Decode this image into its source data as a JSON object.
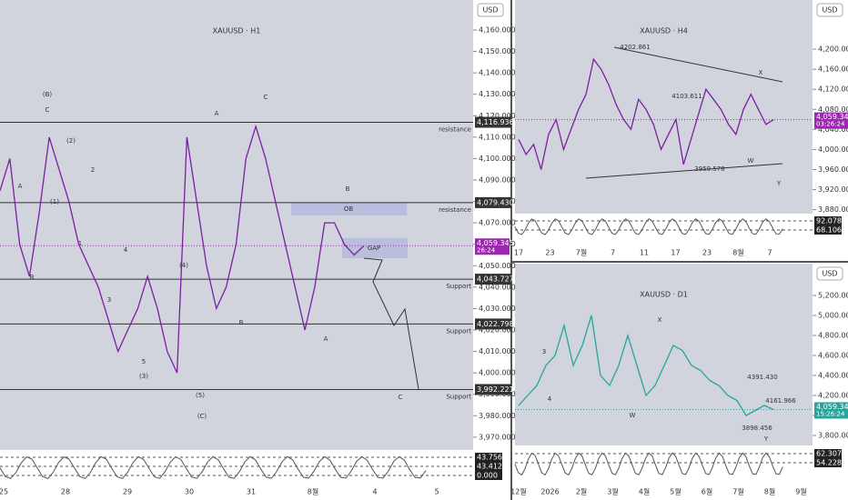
{
  "panels": [
    {
      "title": "XAUUSD · H1",
      "currency": "USD",
      "ylim": [
        3964,
        4174
      ],
      "yticks": [
        {
          "value": 4160,
          "label": "4,160.000"
        },
        {
          "value": 4150,
          "label": "4,150.000"
        },
        {
          "value": 4140,
          "label": "4,140.000"
        },
        {
          "value": 4130,
          "label": "4,130.000"
        },
        {
          "value": 4120,
          "label": "4,120.000"
        },
        {
          "value": 4110,
          "label": "4,110.000"
        },
        {
          "value": 4100,
          "label": "4,100.000"
        },
        {
          "value": 4090,
          "label": "4,090.000"
        },
        {
          "value": 4080,
          "label": "4,080.000"
        },
        {
          "value": 4070,
          "label": "4,070.000"
        },
        {
          "value": 4060,
          "label": "4,060.000"
        },
        {
          "value": 4050,
          "label": "4,050.000"
        },
        {
          "value": 4040,
          "label": "4,040.000"
        },
        {
          "value": 4030,
          "label": "4,030.000"
        },
        {
          "value": 4020,
          "label": "4,020.000"
        },
        {
          "value": 4010,
          "label": "4,010.000"
        },
        {
          "value": 4000,
          "label": "4,000.000"
        },
        {
          "value": 3990,
          "label": "3,990.000"
        },
        {
          "value": 3980,
          "label": "3,980.000"
        },
        {
          "value": 3970,
          "label": "3,970.000"
        }
      ],
      "levels": [
        {
          "value": 4116.936,
          "label": "4,116.936",
          "note": "resistance"
        },
        {
          "value": 4079.43,
          "label": "4,079.430",
          "note": "resistance"
        },
        {
          "value": 4043.727,
          "label": "4,043.727",
          "note": "Support"
        },
        {
          "value": 4022.798,
          "label": "4,022.798",
          "note": "Support"
        },
        {
          "value": 3992.221,
          "label": "3,992.221",
          "note": "Support"
        }
      ],
      "last": {
        "value": 4059.345,
        "label": "4,059.345",
        "timer": "26:24",
        "color": "#9c27b0"
      },
      "osc": [
        "43.756",
        "43.412",
        "0.000"
      ],
      "dates": [
        "25",
        "28",
        "29",
        "30",
        "31",
        "8월",
        "4",
        "5"
      ],
      "price": [
        4085,
        4100,
        4060,
        4045,
        4075,
        4110,
        4095,
        4080,
        4060,
        4050,
        4040,
        4025,
        4010,
        4020,
        4030,
        4045,
        4030,
        4010,
        4000,
        4110,
        4080,
        4050,
        4030,
        4040,
        4060,
        4100,
        4115,
        4100,
        4080,
        4060,
        4040,
        4020,
        4040,
        4070,
        4070,
        4060,
        4055,
        4059.345
      ],
      "annotations": [
        "(B)",
        "C",
        "A",
        "B",
        "(1)",
        "(2)",
        "2",
        "1",
        "4",
        "3",
        "5",
        "(3)",
        "(4)",
        "(5)",
        "(C)",
        "A",
        "B",
        "C",
        "B",
        "A",
        "OB",
        "GAP",
        "C"
      ]
    },
    {
      "title": "XAUUSD · H4",
      "currency": "USD",
      "ylim": [
        3872,
        4298
      ],
      "yticks": [
        {
          "value": 4200,
          "label": "4,200.000"
        },
        {
          "value": 4160,
          "label": "4,160.000"
        },
        {
          "value": 4120,
          "label": "4,120.000"
        },
        {
          "value": 4080,
          "label": "4,080.000"
        },
        {
          "value": 4040,
          "label": "4,040.000"
        },
        {
          "value": 4000,
          "label": "4,000.000"
        },
        {
          "value": 3960,
          "label": "3,960.000"
        },
        {
          "value": 3920,
          "label": "3,920.000"
        },
        {
          "value": 3880,
          "label": "3,880.000"
        }
      ],
      "levels": [],
      "last": {
        "value": 4059.345,
        "label": "4,059.345",
        "timer": "03:26:24",
        "color": "#9c27b0"
      },
      "osc": [
        "92.078",
        "68.106"
      ],
      "dates": [
        "17",
        "23",
        "7월",
        "7",
        "11",
        "17",
        "23",
        "8월",
        "7"
      ],
      "price": [
        4020,
        3990,
        4010,
        3960,
        4030,
        4060,
        4000,
        4040,
        4080,
        4110,
        4180,
        4160,
        4130,
        4090,
        4060,
        4040,
        4100,
        4080,
        4050,
        4000,
        4030,
        4060,
        3970,
        4020,
        4070,
        4120,
        4100,
        4080,
        4050,
        4030,
        4080,
        4110,
        4080,
        4050,
        4059.345
      ],
      "annotations": [
        "4202.861",
        "4103.611",
        "3959.578",
        "X",
        "W",
        "Y"
      ]
    },
    {
      "title": "XAUUSD · D1",
      "currency": "USD",
      "ylim": [
        3700,
        5518
      ],
      "yticks": [
        {
          "value": 5200,
          "label": "5,200.000"
        },
        {
          "value": 5000,
          "label": "5,000.000"
        },
        {
          "value": 4800,
          "label": "4,800.000"
        },
        {
          "value": 4600,
          "label": "4,600.000"
        },
        {
          "value": 4400,
          "label": "4,400.000"
        },
        {
          "value": 4200,
          "label": "4,200.000"
        },
        {
          "value": 4000,
          "label": "4,000.000"
        },
        {
          "value": 3800,
          "label": "3,800.000"
        }
      ],
      "levels": [],
      "last": {
        "value": 4059.345,
        "label": "4,059.345",
        "timer": "15:26:24",
        "color": "#26a69a"
      },
      "osc": [
        "62.307",
        "54.228"
      ],
      "dates": [
        "12월",
        "2026",
        "2월",
        "3월",
        "4월",
        "5월",
        "6월",
        "7월",
        "8월",
        "9월"
      ],
      "price": [
        4100,
        4200,
        4300,
        4500,
        4600,
        4900,
        4500,
        4700,
        5000,
        4400,
        4300,
        4500,
        4800,
        4500,
        4200,
        4300,
        4500,
        4700,
        4650,
        4500,
        4450,
        4350,
        4300,
        4200,
        4150,
        4000,
        4050,
        4100,
        4059.345
      ],
      "annotations": [
        "4391.430",
        "4161.966",
        "3898.456",
        "X",
        "W",
        "Y",
        "3",
        "4"
      ]
    }
  ]
}
